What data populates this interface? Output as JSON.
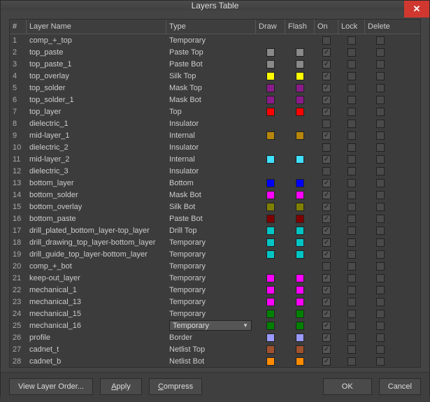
{
  "title": "Layers Table",
  "columns": {
    "num": "#",
    "name": "Layer Name",
    "type": "Type",
    "draw": "Draw",
    "flash": "Flash",
    "on": "On",
    "lock": "Lock",
    "delete": "Delete"
  },
  "rows": [
    {
      "n": "1",
      "name": "comp_+_top",
      "type": "Temporary",
      "draw": null,
      "flash": null,
      "on": false
    },
    {
      "n": "2",
      "name": "top_paste",
      "type": "Paste Top",
      "draw": "#8a8a8a",
      "flash": "#8a8a8a",
      "on": true
    },
    {
      "n": "3",
      "name": "top_paste_1",
      "type": "Paste Bot",
      "draw": "#8a8a8a",
      "flash": "#8a8a8a",
      "on": true
    },
    {
      "n": "4",
      "name": "top_overlay",
      "type": "Silk Top",
      "draw": "#ffff00",
      "flash": "#ffff00",
      "on": true
    },
    {
      "n": "5",
      "name": "top_solder",
      "type": "Mask Top",
      "draw": "#8a1b8a",
      "flash": "#8a1b8a",
      "on": true
    },
    {
      "n": "6",
      "name": "top_solder_1",
      "type": "Mask Bot",
      "draw": "#8a1b8a",
      "flash": "#8a1b8a",
      "on": true
    },
    {
      "n": "7",
      "name": "top_layer",
      "type": "Top",
      "draw": "#ff0000",
      "flash": "#ff0000",
      "on": true
    },
    {
      "n": "8",
      "name": "dielectric_1",
      "type": "Insulator",
      "draw": null,
      "flash": null,
      "on": false
    },
    {
      "n": "9",
      "name": "mid-layer_1",
      "type": "Internal",
      "draw": "#b8860b",
      "flash": "#b8860b",
      "on": true
    },
    {
      "n": "10",
      "name": "dielectric_2",
      "type": "Insulator",
      "draw": null,
      "flash": null,
      "on": false
    },
    {
      "n": "11",
      "name": "mid-layer_2",
      "type": "Internal",
      "draw": "#40e0ff",
      "flash": "#40e0ff",
      "on": true
    },
    {
      "n": "12",
      "name": "dielectric_3",
      "type": "Insulator",
      "draw": null,
      "flash": null,
      "on": false
    },
    {
      "n": "13",
      "name": "bottom_layer",
      "type": "Bottom",
      "draw": "#0000ff",
      "flash": "#0000ff",
      "on": true
    },
    {
      "n": "14",
      "name": "bottom_solder",
      "type": "Mask Bot",
      "draw": "#ff00ff",
      "flash": "#ff00ff",
      "on": true
    },
    {
      "n": "15",
      "name": "bottom_overlay",
      "type": "Silk Bot",
      "draw": "#808000",
      "flash": "#808000",
      "on": true
    },
    {
      "n": "16",
      "name": "bottom_paste",
      "type": "Paste Bot",
      "draw": "#800000",
      "flash": "#800000",
      "on": true
    },
    {
      "n": "17",
      "name": "drill_plated_bottom_layer-top_layer",
      "type": "Drill Top",
      "draw": "#00c5c5",
      "flash": "#00c5c5",
      "on": true
    },
    {
      "n": "18",
      "name": "drill_drawing_top_layer-bottom_layer",
      "type": "Temporary",
      "draw": "#00c5c5",
      "flash": "#00c5c5",
      "on": true
    },
    {
      "n": "19",
      "name": "drill_guide_top_layer-bottom_layer",
      "type": "Temporary",
      "draw": "#00c5c5",
      "flash": "#00c5c5",
      "on": true
    },
    {
      "n": "20",
      "name": "comp_+_bot",
      "type": "Temporary",
      "draw": null,
      "flash": null,
      "on": false
    },
    {
      "n": "21",
      "name": "keep-out_layer",
      "type": "Temporary",
      "draw": "#ff00ff",
      "flash": "#ff00ff",
      "on": true
    },
    {
      "n": "22",
      "name": "mechanical_1",
      "type": "Temporary",
      "draw": "#ff00ff",
      "flash": "#ff00ff",
      "on": true
    },
    {
      "n": "23",
      "name": "mechanical_13",
      "type": "Temporary",
      "draw": "#ff00ff",
      "flash": "#ff00ff",
      "on": true
    },
    {
      "n": "24",
      "name": "mechanical_15",
      "type": "Temporary",
      "draw": "#008000",
      "flash": "#008000",
      "on": true
    },
    {
      "n": "25",
      "name": "mechanical_16",
      "type": "Temporary",
      "type_editing": true,
      "draw": "#008000",
      "flash": "#008000",
      "on": true
    },
    {
      "n": "26",
      "name": "profile",
      "type": "Border",
      "draw": "#9999ff",
      "flash": "#9999ff",
      "on": true
    },
    {
      "n": "27",
      "name": "cadnet_t",
      "type": "Netlist Top",
      "draw": "#a0522d",
      "flash": "#a0522d",
      "on": true
    },
    {
      "n": "28",
      "name": "cadnet_b",
      "type": "Netlist Bot",
      "draw": "#ff8c00",
      "flash": "#ff8c00",
      "on": true
    }
  ],
  "footer": {
    "view_layer_order": "View Layer Order...",
    "apply": "Apply",
    "compress": "Compress",
    "ok": "OK",
    "cancel": "Cancel"
  },
  "colors": {
    "dialog_bg": "#444444",
    "row_bg": "#3c3c3c",
    "header_fg": "#cccccc",
    "close_bg": "#d0382f"
  }
}
